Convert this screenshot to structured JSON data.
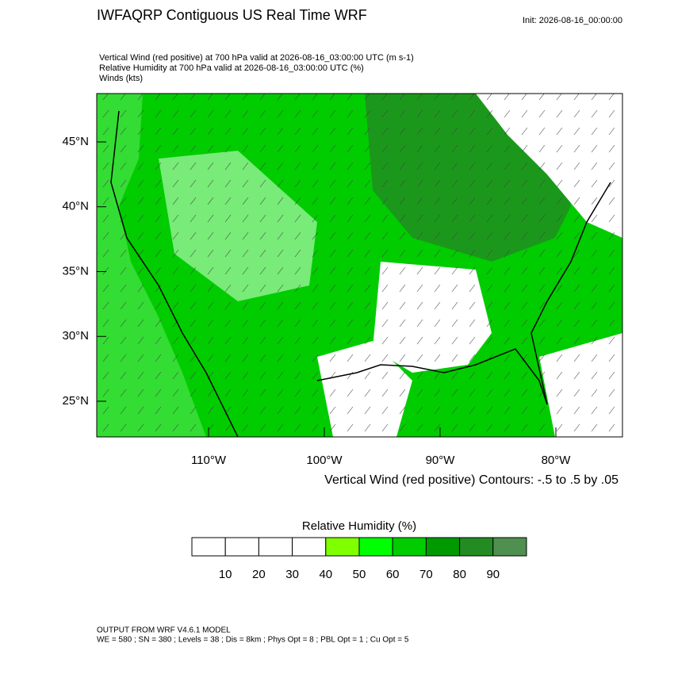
{
  "header": {
    "title": "IWFAQRP Contiguous US Real Time WRF",
    "init": "Init: 2026-08-16_00:00:00"
  },
  "fields": [
    "Vertical Wind (red positive) at 700 hPa valid at 2026-08-16_03:00:00 UTC   (m s-1)",
    "Relative Humidity at 700 hPa valid at 2026-08-16_03:00:00 UTC   (%)",
    "Winds   (kts)"
  ],
  "map": {
    "lat_labels": [
      {
        "value": 45,
        "label": "45°N"
      },
      {
        "value": 40,
        "label": "40°N"
      },
      {
        "value": 35,
        "label": "35°N"
      },
      {
        "value": 30,
        "label": "30°N"
      },
      {
        "value": 25,
        "label": "25°N"
      }
    ],
    "lon_labels": [
      {
        "value": -110,
        "label": "110°W"
      },
      {
        "value": -100,
        "label": "100°W"
      },
      {
        "value": -90,
        "label": "90°W"
      },
      {
        "value": -80,
        "label": "80°W"
      }
    ],
    "contour_note": "Vertical Wind (red positive) Contours: -.5 to .5 by .05"
  },
  "colorbar": {
    "title": "Relative Humidity  (%)",
    "ticks": [
      10,
      20,
      30,
      40,
      50,
      60,
      70,
      80,
      90
    ],
    "colors": [
      "#ffffff",
      "#ffffff",
      "#ffffff",
      "#ffffff",
      "#80ff00",
      "#00ff00",
      "#00cc00",
      "#009900",
      "#228b22",
      "#4f8f4f"
    ]
  },
  "footer": {
    "line1": "OUTPUT FROM WRF V4.6.1 MODEL",
    "line2": "WE = 580 ; SN = 380 ; Levels = 38 ; Dis = 8km ; Phys Opt = 8 ; PBL Opt = 1 ; Cu Opt = 5"
  }
}
